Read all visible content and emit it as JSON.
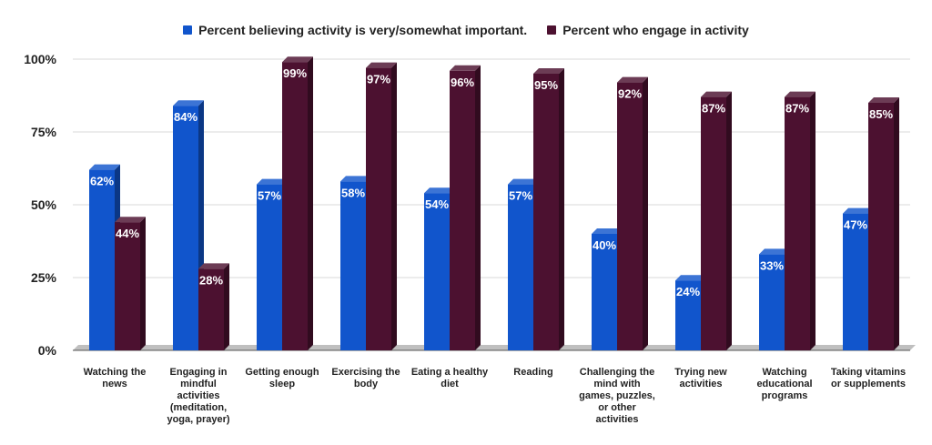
{
  "chart_data": {
    "type": "bar",
    "title": "",
    "xlabel": "",
    "ylabel": "",
    "ylim": [
      0,
      100
    ],
    "yticks": [
      "0%",
      "25%",
      "50%",
      "75%",
      "100%"
    ],
    "ytick_values": [
      0,
      25,
      50,
      75,
      100
    ],
    "grid": true,
    "legend_position": "top-center",
    "style": "3d",
    "categories": [
      [
        "Watching the",
        "news"
      ],
      [
        "Engaging in",
        "mindful",
        "activities",
        "(meditation,",
        "yoga, prayer)"
      ],
      [
        "Getting enough",
        "sleep"
      ],
      [
        "Exercising the",
        "body"
      ],
      [
        "Eating a healthy",
        "diet"
      ],
      [
        "Reading"
      ],
      [
        "Challenging the",
        "mind with",
        "games, puzzles,",
        "or other",
        "activities"
      ],
      [
        "Trying new",
        "activities"
      ],
      [
        "Watching",
        "educational",
        "programs"
      ],
      [
        "Taking vitamins",
        "or supplements"
      ]
    ],
    "series": [
      {
        "name": "Percent believing activity is very/somewhat important.",
        "color": "#1155cc",
        "values": [
          62,
          84,
          57,
          58,
          54,
          57,
          40,
          24,
          33,
          47
        ],
        "labels": [
          "62%",
          "84%",
          "57%",
          "58%",
          "54%",
          "57%",
          "40%",
          "24%",
          "33%",
          "47%"
        ]
      },
      {
        "name": "Percent who engage in activity",
        "color": "#4c1130",
        "values": [
          44,
          28,
          99,
          97,
          96,
          95,
          92,
          87,
          87,
          85
        ],
        "labels": [
          "44%",
          "28%",
          "99%",
          "97%",
          "96%",
          "95%",
          "92%",
          "87%",
          "87%",
          "85%"
        ]
      }
    ]
  }
}
